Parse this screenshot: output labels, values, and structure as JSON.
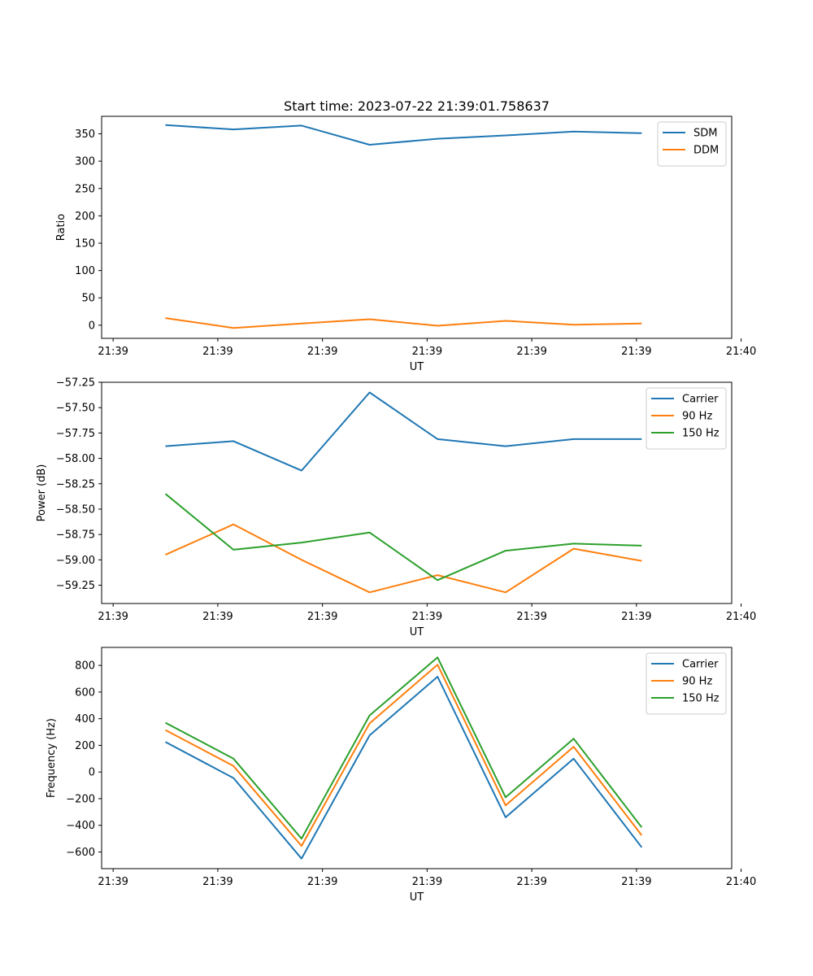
{
  "figure_title": "Start time: 2023-07-22 21:39:01.758637",
  "chart_data": [
    {
      "type": "line",
      "title": "Start time: 2023-07-22 21:39:01.758637",
      "xlabel": "UT",
      "ylabel": "Ratio",
      "x": [
        0.5,
        1.15,
        1.8,
        2.45,
        3.1,
        3.75,
        4.4,
        5.05
      ],
      "xlim": [
        -0.11,
        5.91
      ],
      "ylim": [
        -24,
        382
      ],
      "xticks": [
        0,
        1,
        2,
        3,
        4,
        5,
        6
      ],
      "xtick_labels": [
        "21:39",
        "21:39",
        "21:39",
        "21:39",
        "21:39",
        "21:39",
        "21:40"
      ],
      "yticks": [
        0,
        50,
        100,
        150,
        200,
        250,
        300,
        350
      ],
      "ytick_labels": [
        "0",
        "50",
        "100",
        "150",
        "200",
        "250",
        "300",
        "350"
      ],
      "legend": "top-right",
      "series": [
        {
          "name": "SDM",
          "color": "#1f77b4",
          "values": [
            366,
            358,
            365,
            330,
            341,
            347,
            354,
            351
          ]
        },
        {
          "name": "DDM",
          "color": "#ff7f0e",
          "values": [
            13,
            -5,
            3,
            11,
            -1,
            8,
            1,
            3
          ]
        }
      ]
    },
    {
      "type": "line",
      "title": "",
      "xlabel": "UT",
      "ylabel": "Power (dB)",
      "x": [
        0.5,
        1.15,
        1.8,
        2.45,
        3.1,
        3.75,
        4.4,
        5.05
      ],
      "xlim": [
        -0.11,
        5.91
      ],
      "ylim": [
        -59.43,
        -57.25
      ],
      "xticks": [
        0,
        1,
        2,
        3,
        4,
        5,
        6
      ],
      "xtick_labels": [
        "21:39",
        "21:39",
        "21:39",
        "21:39",
        "21:39",
        "21:39",
        "21:40"
      ],
      "yticks": [
        -59.25,
        -59.0,
        -58.75,
        -58.5,
        -58.25,
        -58.0,
        -57.75,
        -57.5,
        -57.25
      ],
      "ytick_labels": [
        "−59.25",
        "−59.00",
        "−58.75",
        "−58.50",
        "−58.25",
        "−58.00",
        "−57.75",
        "−57.50",
        "−57.25"
      ],
      "legend": "top-right",
      "series": [
        {
          "name": "Carrier",
          "color": "#1f77b4",
          "values": [
            -57.88,
            -57.83,
            -58.12,
            -57.35,
            -57.81,
            -57.88,
            -57.81,
            -57.81
          ]
        },
        {
          "name": "90 Hz",
          "color": "#ff7f0e",
          "values": [
            -58.95,
            -58.65,
            -59.0,
            -59.32,
            -59.15,
            -59.32,
            -58.89,
            -59.01
          ]
        },
        {
          "name": "150 Hz",
          "color": "#2ca02c",
          "values": [
            -58.35,
            -58.9,
            -58.83,
            -58.73,
            -59.2,
            -58.91,
            -58.84,
            -58.86
          ]
        }
      ]
    },
    {
      "type": "line",
      "title": "",
      "xlabel": "UT",
      "ylabel": "Frequency (Hz)",
      "x": [
        0.5,
        1.15,
        1.8,
        2.45,
        3.1,
        3.75,
        4.4,
        5.05
      ],
      "xlim": [
        -0.11,
        5.91
      ],
      "ylim": [
        -725,
        935
      ],
      "xticks": [
        0,
        1,
        2,
        3,
        4,
        5,
        6
      ],
      "xtick_labels": [
        "21:39",
        "21:39",
        "21:39",
        "21:39",
        "21:39",
        "21:39",
        "21:40"
      ],
      "yticks": [
        -600,
        -400,
        -200,
        0,
        200,
        400,
        600,
        800
      ],
      "ytick_labels": [
        "−600",
        "−400",
        "−200",
        "0",
        "200",
        "400",
        "600",
        "800"
      ],
      "legend": "top-right",
      "series": [
        {
          "name": "Carrier",
          "color": "#1f77b4",
          "values": [
            225,
            -45,
            -650,
            275,
            715,
            -340,
            100,
            -565
          ]
        },
        {
          "name": "90 Hz",
          "color": "#ff7f0e",
          "values": [
            315,
            45,
            -555,
            365,
            805,
            -250,
            190,
            -475
          ]
        },
        {
          "name": "150 Hz",
          "color": "#2ca02c",
          "values": [
            370,
            100,
            -500,
            425,
            860,
            -190,
            250,
            -415
          ]
        }
      ]
    }
  ]
}
